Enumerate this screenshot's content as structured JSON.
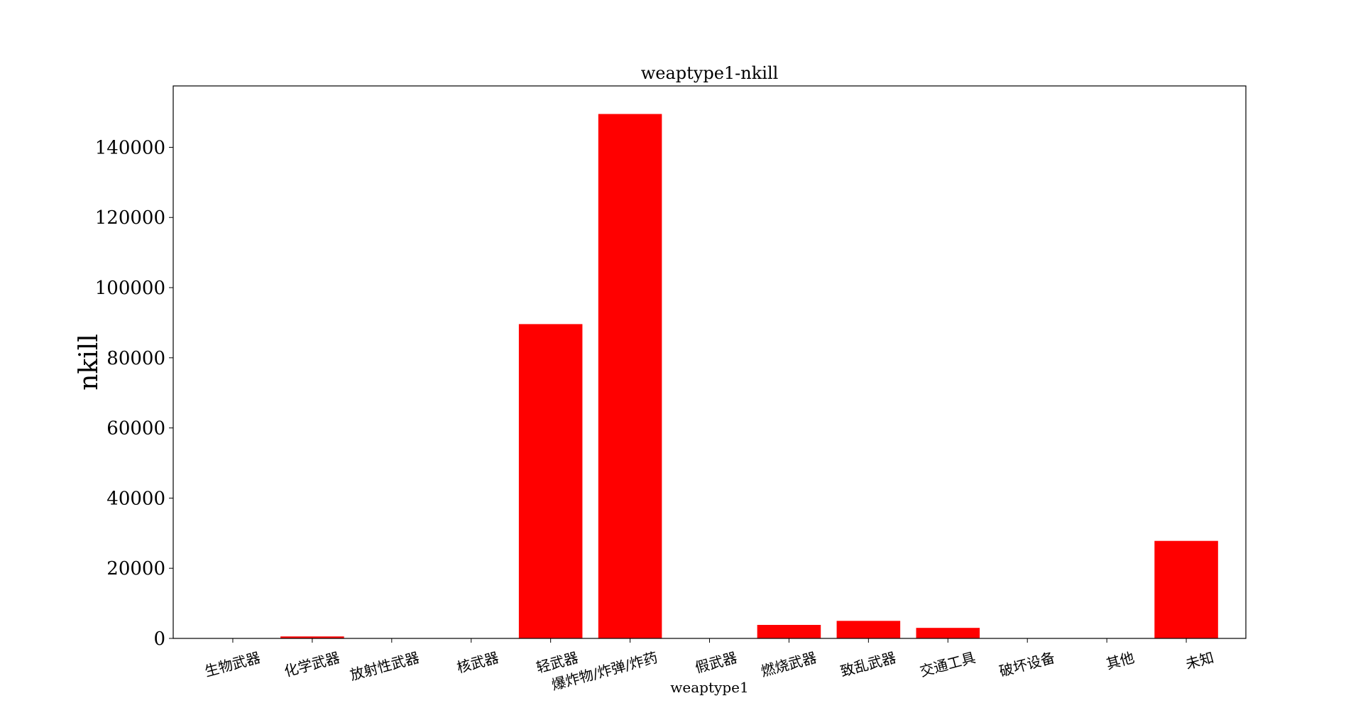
{
  "chart_data": {
    "type": "bar",
    "title": "weaptype1-nkill",
    "xlabel": "weaptype1",
    "ylabel": "nkill",
    "categories": [
      "生物武器",
      "化学武器",
      "放射性武器",
      "核武器",
      "轻武器",
      "爆炸物/炸弹/炸药",
      "假武器",
      "燃烧武器",
      "致乱武器",
      "交通工具",
      "破坏设备",
      "其他",
      "未知"
    ],
    "values": [
      9,
      560,
      0,
      0,
      89600,
      149500,
      0,
      3850,
      5000,
      3000,
      0,
      100,
      27800
    ],
    "ylim": [
      0,
      157500
    ],
    "yticks": [
      0,
      20000,
      40000,
      60000,
      80000,
      100000,
      120000,
      140000
    ],
    "bar_color": "#ff0000",
    "grid": false,
    "xtick_rotation_deg": 15
  }
}
